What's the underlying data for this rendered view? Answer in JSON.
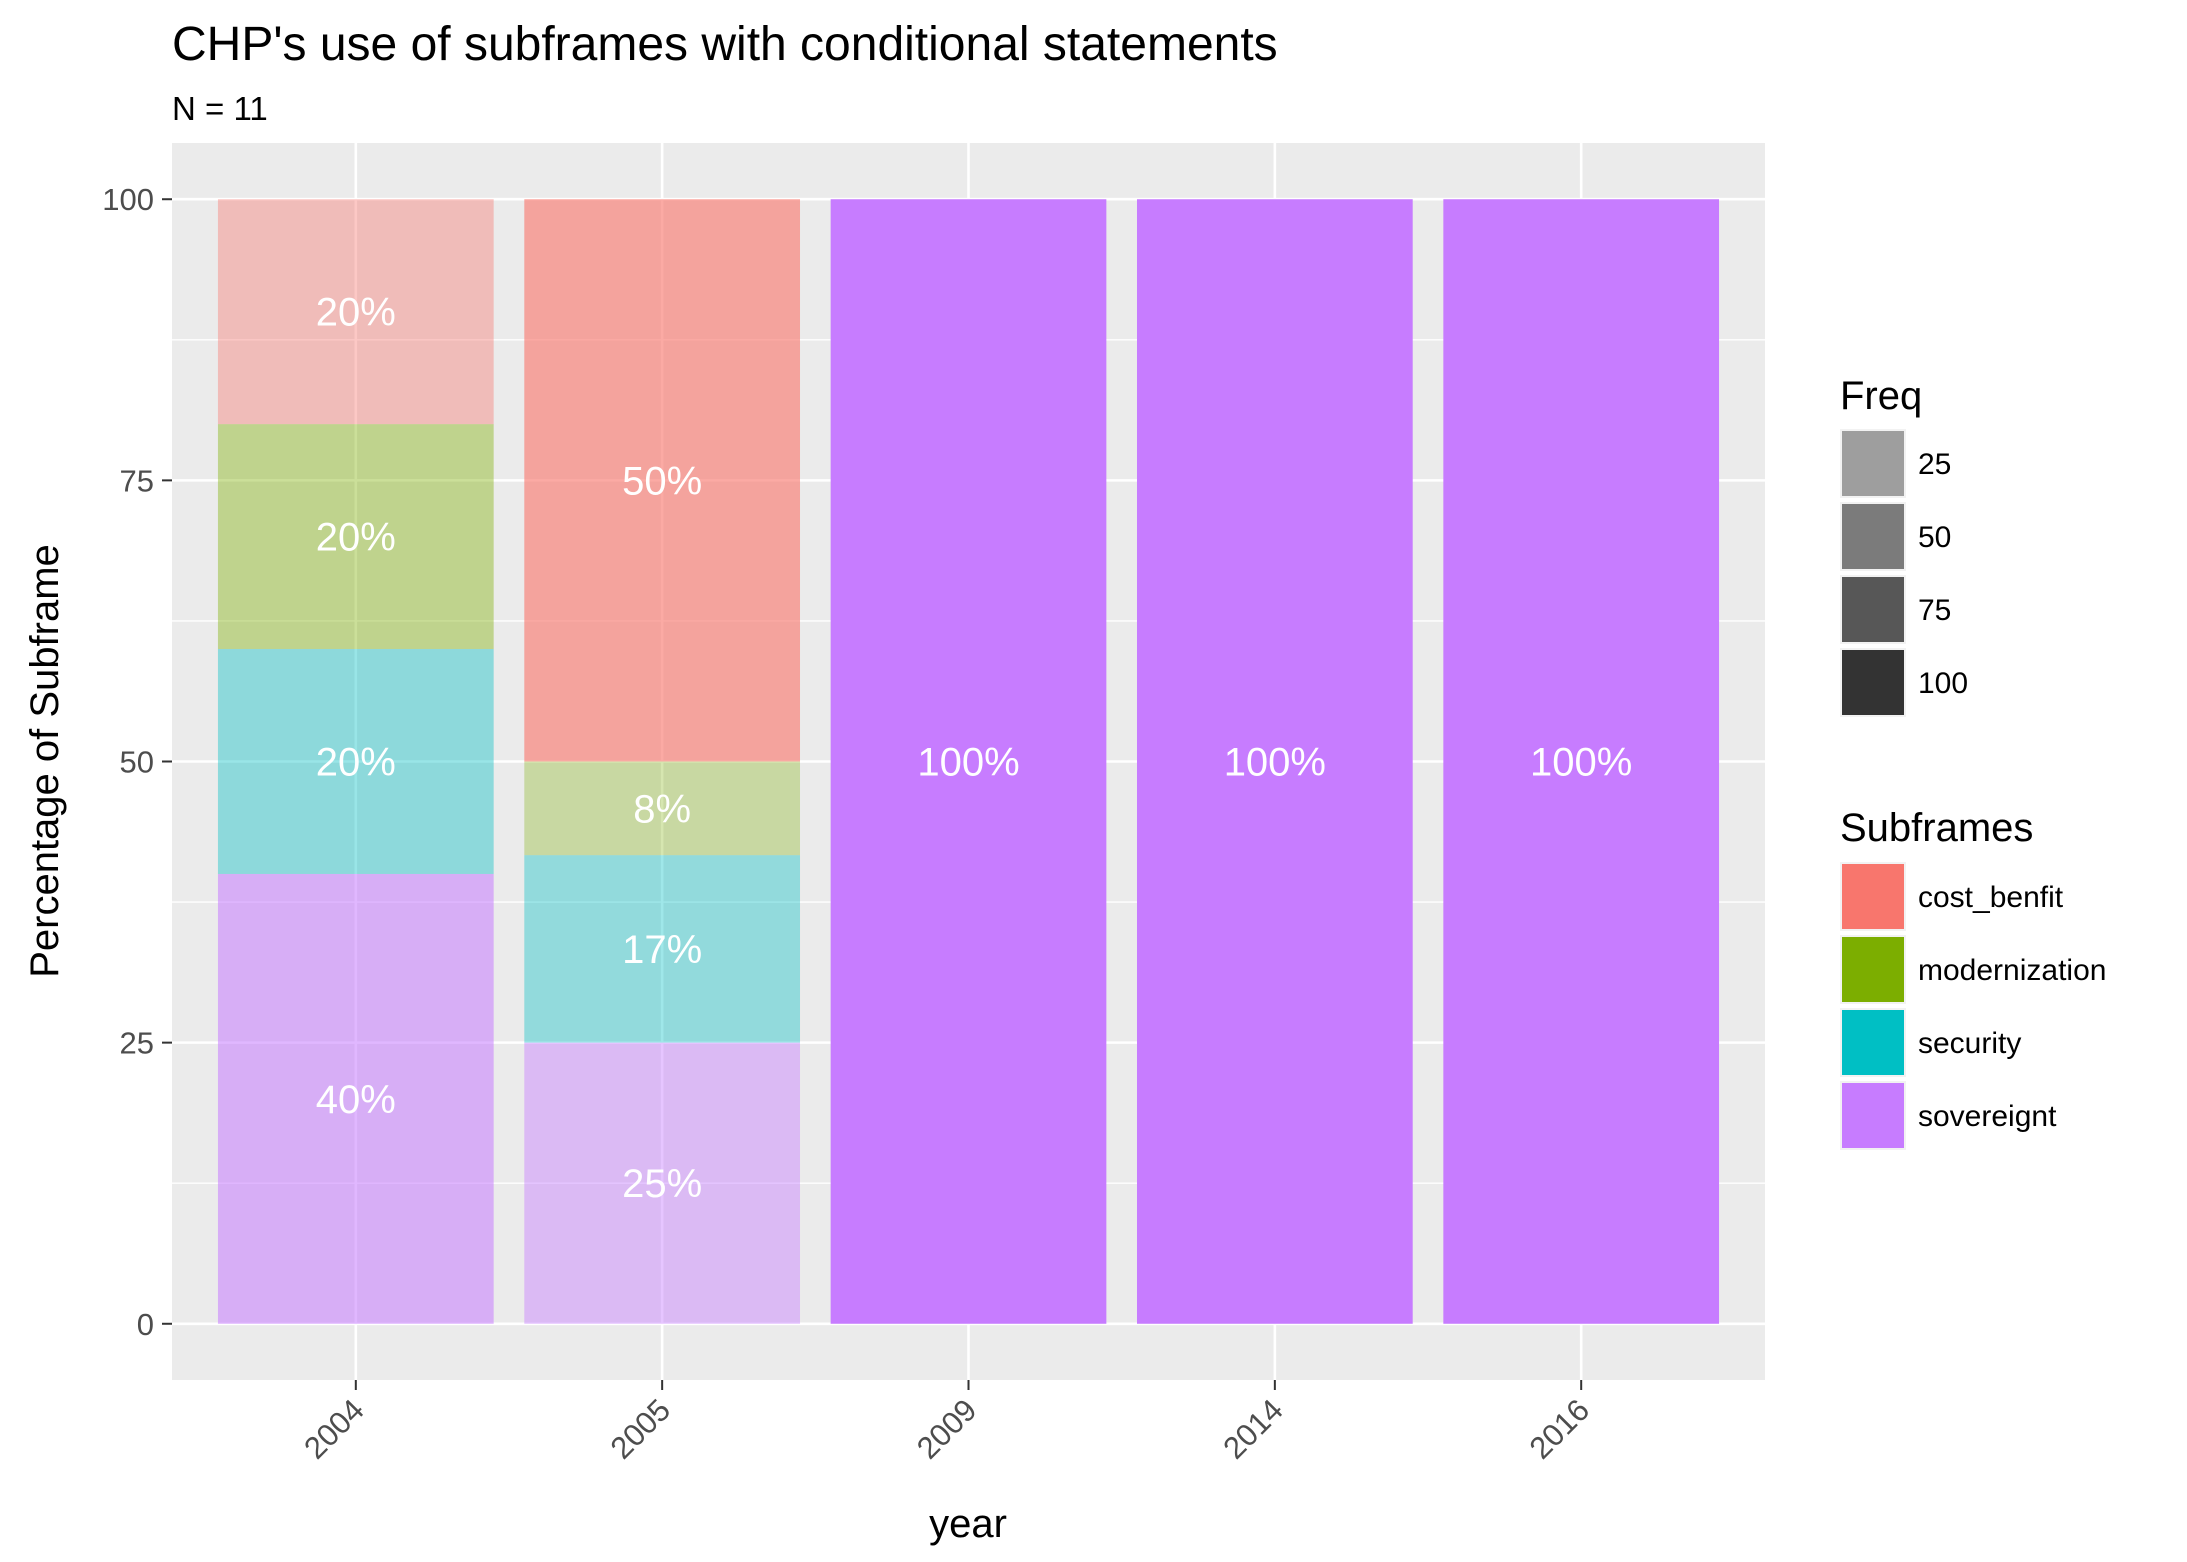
{
  "chart_data": {
    "type": "bar",
    "stacked": true,
    "title": "CHP's use of subframes with conditional statements",
    "subtitle": "N = 11",
    "xlabel": "year",
    "ylabel": "Percentage of Subframe",
    "ylim": [
      -5,
      105
    ],
    "yticks": [
      0,
      25,
      50,
      75,
      100
    ],
    "ytick_labels": [
      "0",
      "25",
      "50",
      "75",
      "100"
    ],
    "grid": true,
    "categories": [
      "2004",
      "2005",
      "2009",
      "2014",
      "2016"
    ],
    "series": [
      {
        "name": "sovereignt",
        "color": "#C77CFF",
        "values": [
          40,
          25,
          100,
          100,
          100
        ],
        "labels": [
          "40%",
          "25%",
          "100%",
          "100%",
          "100%"
        ]
      },
      {
        "name": "security",
        "color": "#00BFC4",
        "values": [
          20,
          16.67,
          0,
          0,
          0
        ],
        "labels": [
          "20%",
          "17%",
          "",
          "",
          ""
        ]
      },
      {
        "name": "modernization",
        "color": "#7CAE00",
        "values": [
          20,
          8.33,
          0,
          0,
          0
        ],
        "labels": [
          "20%",
          "8%",
          "",
          "",
          ""
        ]
      },
      {
        "name": "cost_benfit",
        "color": "#F8766D",
        "values": [
          20,
          50,
          0,
          0,
          0
        ],
        "labels": [
          "20%",
          "50%",
          "",
          "",
          ""
        ]
      }
    ],
    "freq": [
      [
        40,
        25,
        100,
        100,
        100
      ],
      [
        20,
        17,
        0,
        0,
        0
      ],
      [
        20,
        8,
        0,
        0,
        0
      ],
      [
        20,
        50,
        0,
        0,
        0
      ]
    ],
    "legend_placement": "right",
    "legends": {
      "freq": {
        "title": "Freq",
        "entries": [
          "25",
          "50",
          "75",
          "100"
        ],
        "values": [
          25,
          50,
          75,
          100
        ]
      },
      "subframes": {
        "title": "Subframes",
        "entries": [
          "cost_benfit",
          "modernization",
          "security",
          "sovereignt"
        ],
        "colors": [
          "#F8766D",
          "#7CAE00",
          "#00BFC4",
          "#C77CFF"
        ]
      }
    }
  }
}
